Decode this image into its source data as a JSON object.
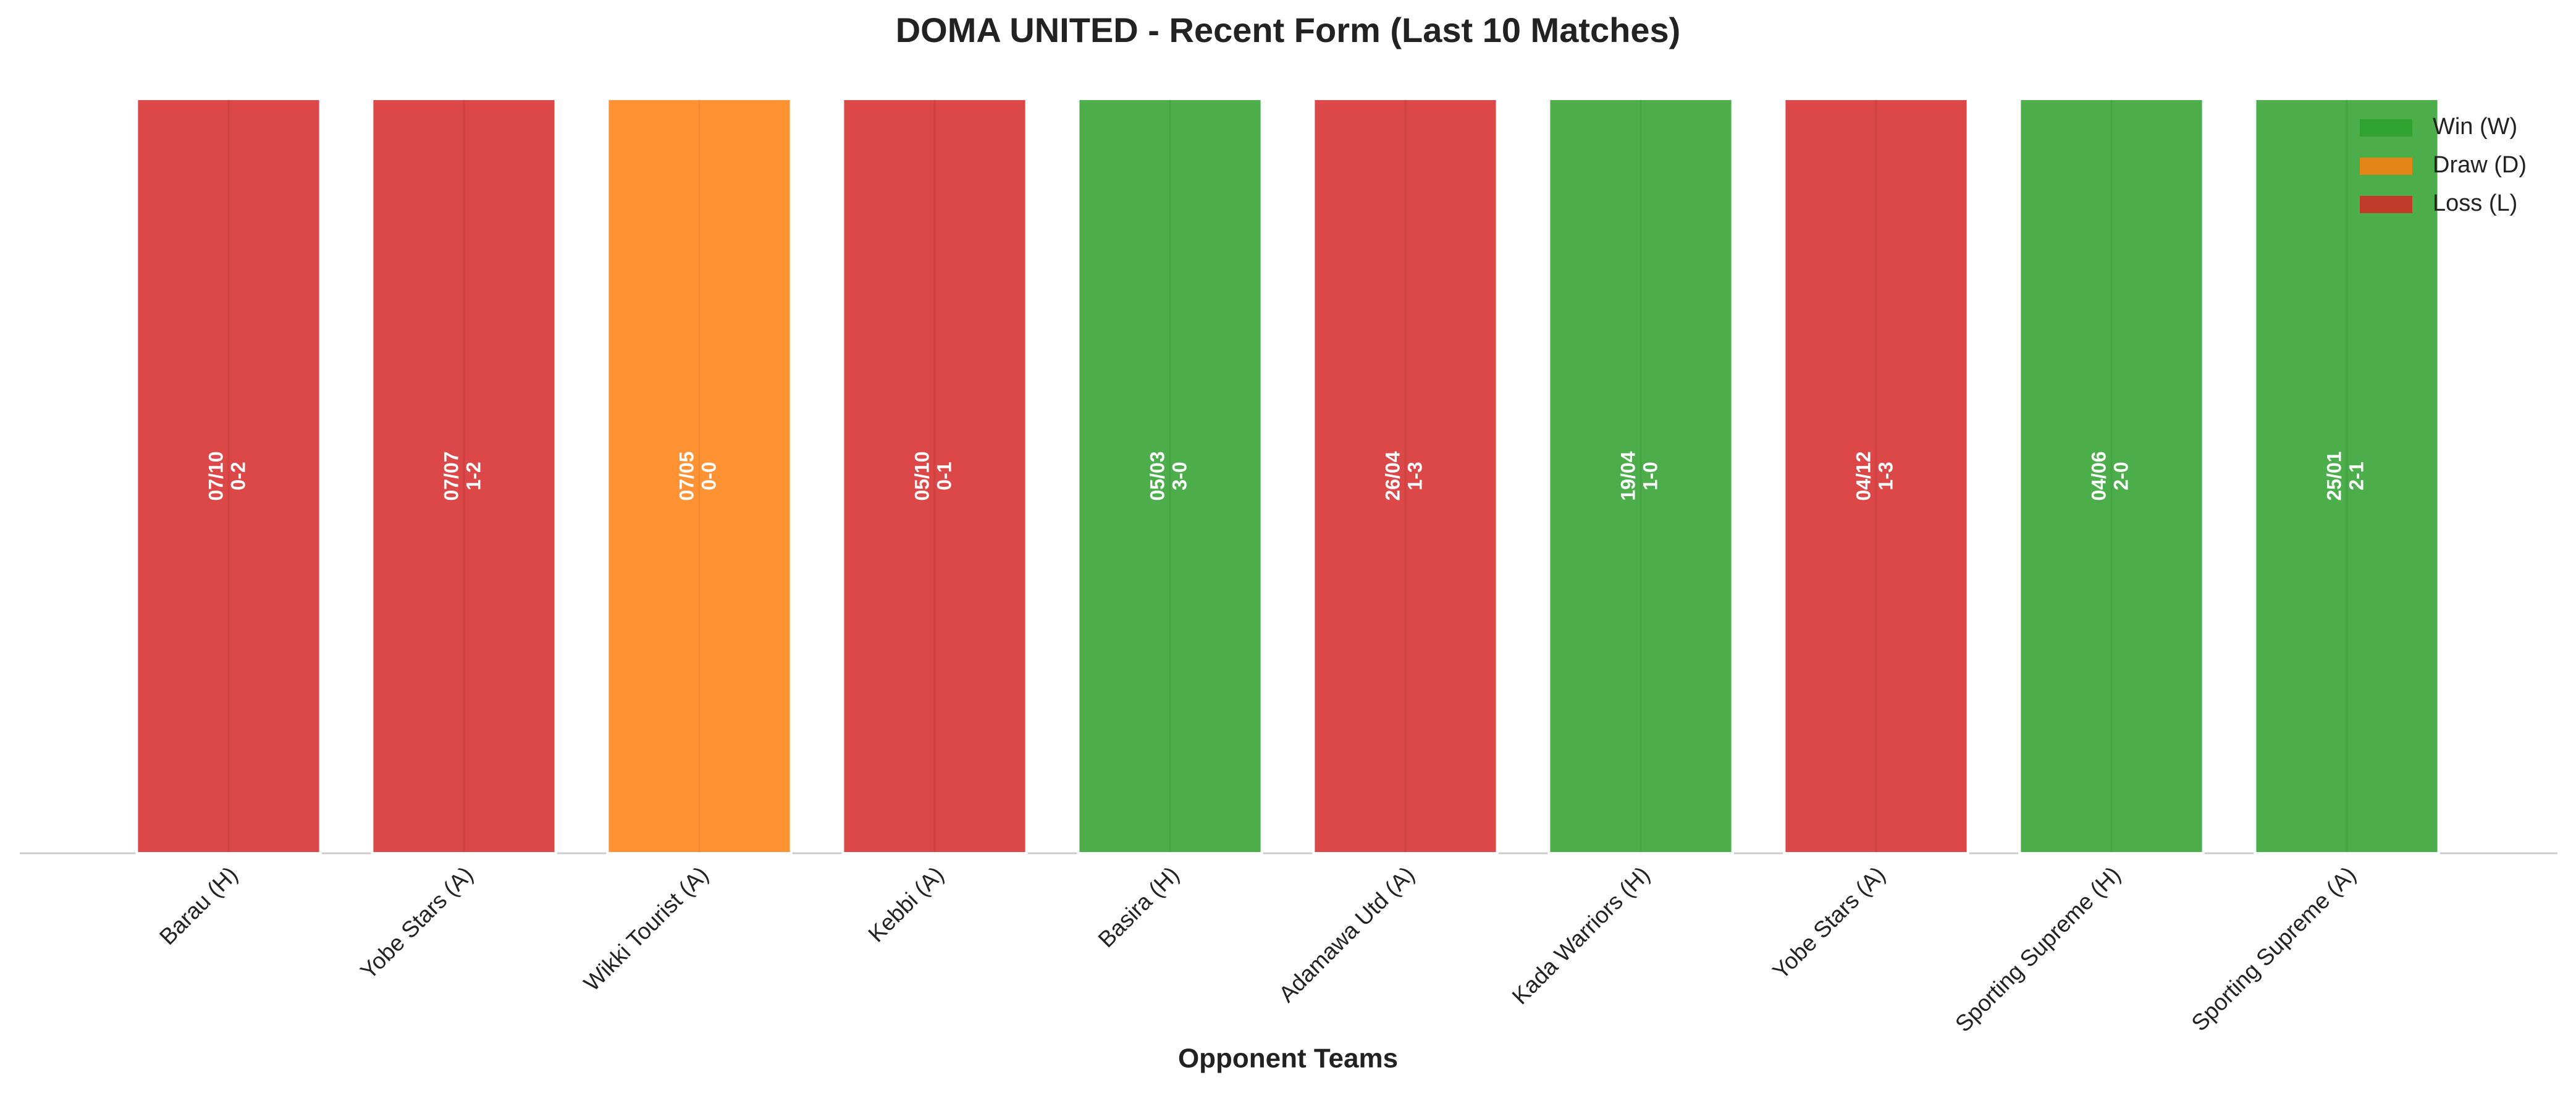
{
  "chart_data": {
    "type": "bar",
    "title": "DOMA UNITED - Recent Form (Last 10 Matches)",
    "xlabel": "Opponent Teams",
    "categories": [
      "Barau (H)",
      "Yobe Stars (A)",
      "Wikki Tourist (A)",
      "Kebbi (A)",
      "Basira (H)",
      "Adamawa Utd (A)",
      "Kada Warriors (H)",
      "Yobe Stars (A)",
      "Sporting Supreme (H)",
      "Sporting Supreme (A)"
    ],
    "values": [
      1,
      1,
      1,
      1,
      1,
      1,
      1,
      1,
      1,
      1
    ],
    "dates": [
      "07/10",
      "07/07",
      "07/05",
      "05/10",
      "05/03",
      "26/04",
      "19/04",
      "04/12",
      "04/06",
      "25/01"
    ],
    "scores": [
      "0-2",
      "1-2",
      "0-0",
      "0-1",
      "3-0",
      "1-3",
      "1-0",
      "1-3",
      "2-0",
      "2-1"
    ],
    "bar_colors": [
      "#d62728",
      "#d62728",
      "#ff7f0e",
      "#d62728",
      "#2ca02c",
      "#d62728",
      "#2ca02c",
      "#d62728",
      "#2ca02c",
      "#2ca02c"
    ],
    "legend": [
      {
        "name": "Win (W)",
        "color": "#2ca02c"
      },
      {
        "name": "Draw (D)",
        "color": "#ff7f0e"
      },
      {
        "name": "Loss (L)",
        "color": "#d62728"
      }
    ],
    "legend_position": "upper right",
    "ylim": [
      0,
      1
    ]
  }
}
